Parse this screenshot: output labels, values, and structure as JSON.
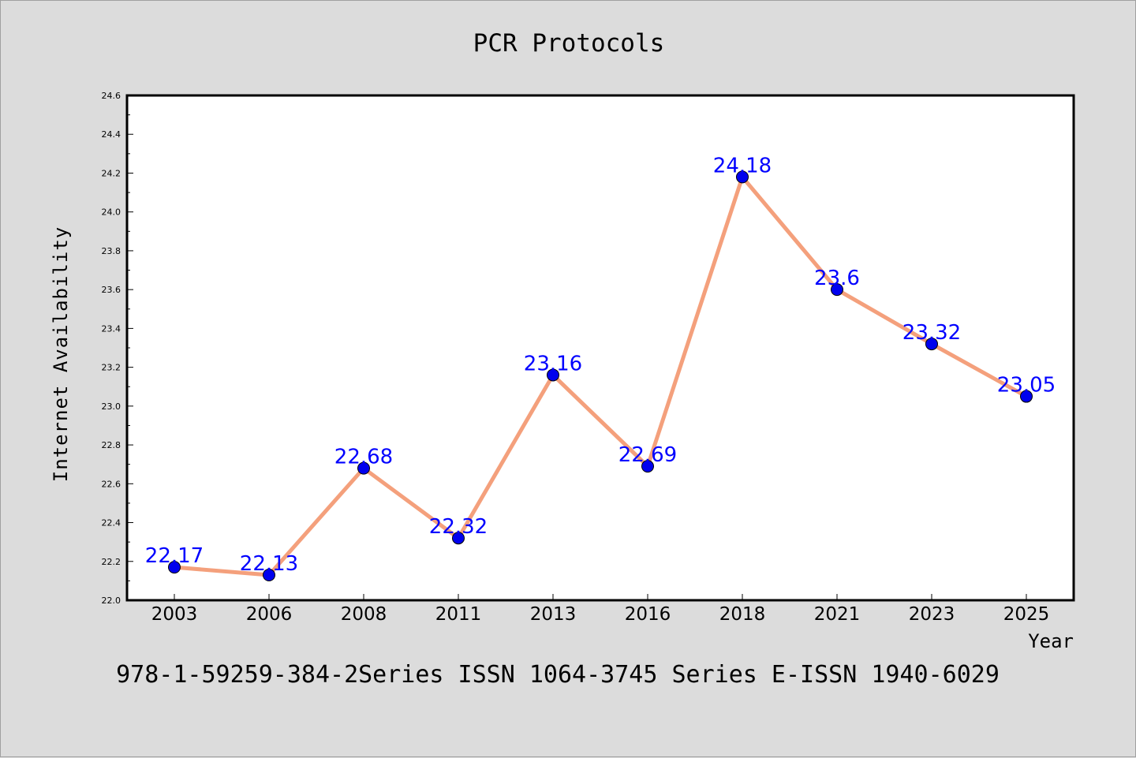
{
  "chart_data": {
    "type": "line",
    "title": "PCR Protocols",
    "xlabel": "Year",
    "ylabel": "Internet Availability",
    "categories": [
      "2003",
      "2006",
      "2008",
      "2011",
      "2013",
      "2016",
      "2018",
      "2021",
      "2023",
      "2025"
    ],
    "series": [
      {
        "values": [
          22.17,
          22.13,
          22.68,
          22.32,
          23.16,
          22.69,
          24.18,
          23.6,
          23.32,
          23.05
        ],
        "labels": [
          "22.17",
          "22.13",
          "22.68",
          "22.32",
          "23.16",
          "22.69",
          "24.18",
          "23.6",
          "23.32",
          "23.05"
        ],
        "line_color": "#f4a07c",
        "marker_color": "#0000ee"
      }
    ],
    "ylim": [
      22.0,
      24.6
    ],
    "yticks": [
      "22.0",
      "22.2",
      "22.4",
      "22.6",
      "22.8",
      "23.0",
      "23.2",
      "23.4",
      "23.6",
      "23.8",
      "24.0",
      "24.2",
      "24.4",
      "24.6"
    ],
    "grid": false,
    "label_color": "#0000ff"
  },
  "footer_text": "978-1-59259-384-2Series ISSN 1064-3745 Series E-ISSN 1940-6029"
}
